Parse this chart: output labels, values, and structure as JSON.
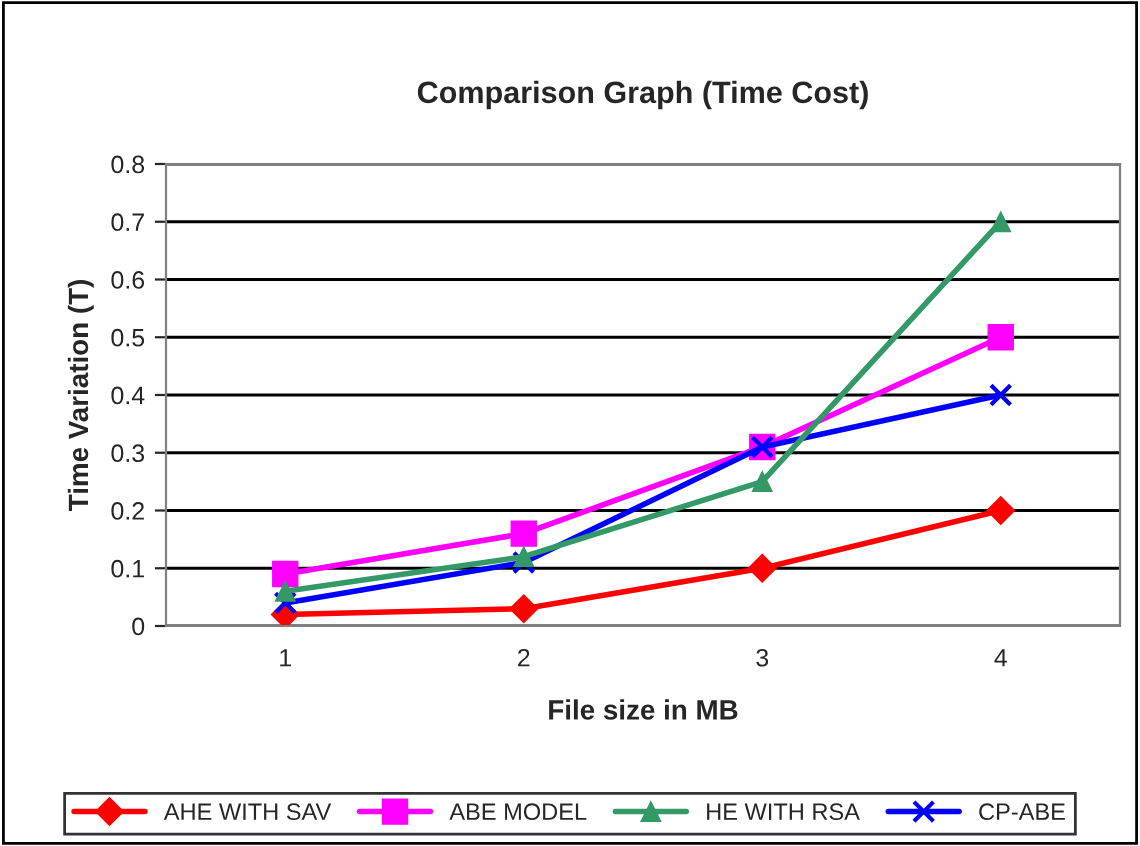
{
  "chart_data": {
    "type": "line",
    "title": "Comparison Graph (Time Cost)",
    "xlabel": "File size in MB",
    "ylabel": "Time Variation (T)",
    "categories": [
      "1",
      "2",
      "3",
      "4"
    ],
    "series": [
      {
        "name": "AHE WITH SAV",
        "color": "#ff0000",
        "marker": "diamond",
        "values": [
          0.02,
          0.03,
          0.1,
          0.2
        ]
      },
      {
        "name": "ABE MODEL",
        "color": "#ff00ff",
        "marker": "square",
        "values": [
          0.09,
          0.16,
          0.31,
          0.5
        ]
      },
      {
        "name": "HE WITH RSA",
        "color": "#339966",
        "marker": "triangle",
        "values": [
          0.06,
          0.12,
          0.25,
          0.7
        ]
      },
      {
        "name": "CP-ABE",
        "color": "#0000ff",
        "marker": "cross",
        "values": [
          0.04,
          0.11,
          0.31,
          0.4
        ]
      }
    ],
    "ylim": [
      0,
      0.8
    ],
    "yticks": [
      0,
      0.1,
      0.2,
      0.3,
      0.4,
      0.5,
      0.6,
      0.7,
      0.8
    ],
    "grid": "y",
    "legend": "bottom"
  }
}
